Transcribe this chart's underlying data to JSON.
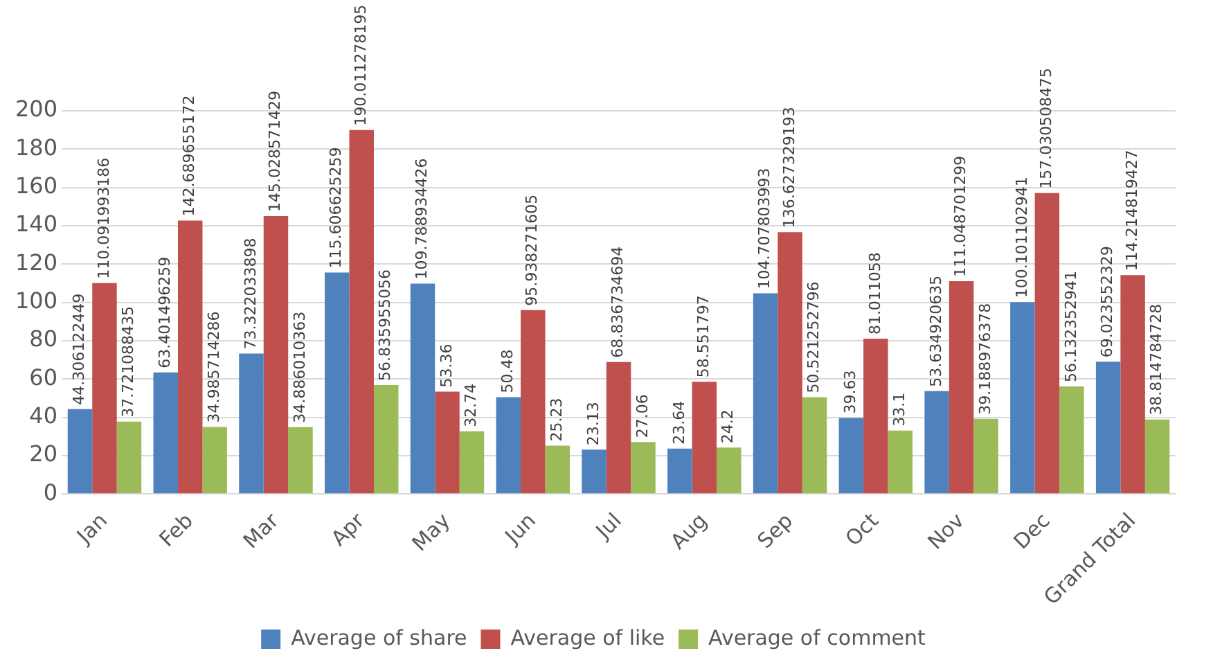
{
  "chart_data": {
    "type": "bar",
    "categories": [
      "Jan",
      "Feb",
      "Mar",
      "Apr",
      "May",
      "Jun",
      "Jul",
      "Aug",
      "Sep",
      "Oct",
      "Nov",
      "Dec",
      "Grand Total"
    ],
    "series": [
      {
        "name": "Average of share",
        "color": "#4f81bd",
        "values": [
          44.306122449,
          63.401496259,
          73.322033898,
          115.606625259,
          109.788934426,
          50.48,
          23.13,
          23.64,
          104.707803993,
          39.63,
          53.634920635,
          100.101102941,
          69.023552329
        ]
      },
      {
        "name": "Average of like",
        "color": "#c0504d",
        "values": [
          110.091993186,
          142.689655172,
          145.028571429,
          190.011278195,
          53.36,
          95.938271605,
          68.836734694,
          58.551797,
          136.627329193,
          81.011058,
          111.048701299,
          157.030508475,
          114.214819427
        ]
      },
      {
        "name": "Average of comment",
        "color": "#9bbb59",
        "values": [
          37.721088435,
          34.985714286,
          34.886010363,
          56.835955056,
          32.74,
          25.23,
          27.06,
          24.2,
          50.521252796,
          33.1,
          39.188976378,
          56.132352941,
          38.814784728
        ]
      }
    ],
    "ylim": [
      0,
      200
    ],
    "yticks": [
      0,
      20,
      40,
      60,
      80,
      100,
      120,
      140,
      160,
      180,
      200
    ],
    "grid": "y",
    "legend": "bottom",
    "data_labels": true
  }
}
